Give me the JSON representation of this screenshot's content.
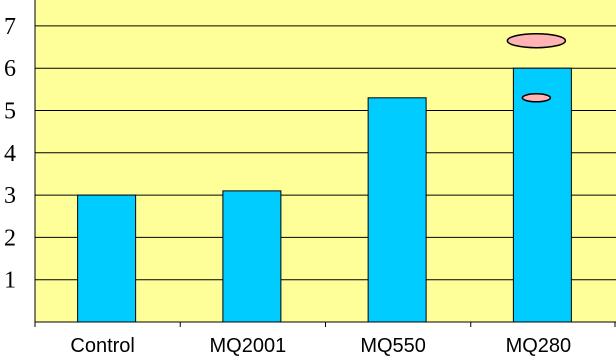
{
  "chart_data": {
    "type": "bar",
    "categories": [
      "Control",
      "MQ2001",
      "MQ550",
      "MQ280"
    ],
    "values": [
      3.0,
      3.1,
      5.3,
      6.0
    ],
    "title": "",
    "xlabel": "",
    "ylabel": "",
    "ylim": [
      0,
      7
    ],
    "yticks": [
      1,
      2,
      3,
      4,
      5,
      6,
      7
    ],
    "grid": true,
    "legend": "none",
    "markers": [
      {
        "category": "MQ280",
        "value": 6.65
      },
      {
        "category": "MQ280",
        "value": 5.3
      }
    ]
  },
  "colors": {
    "plot_background": "#FFFF99",
    "bar_fill": "#00CCFF",
    "bar_stroke": "#000000",
    "grid": "#000000",
    "marker_fill": "#FFB3B3",
    "marker_stroke": "#000000"
  }
}
